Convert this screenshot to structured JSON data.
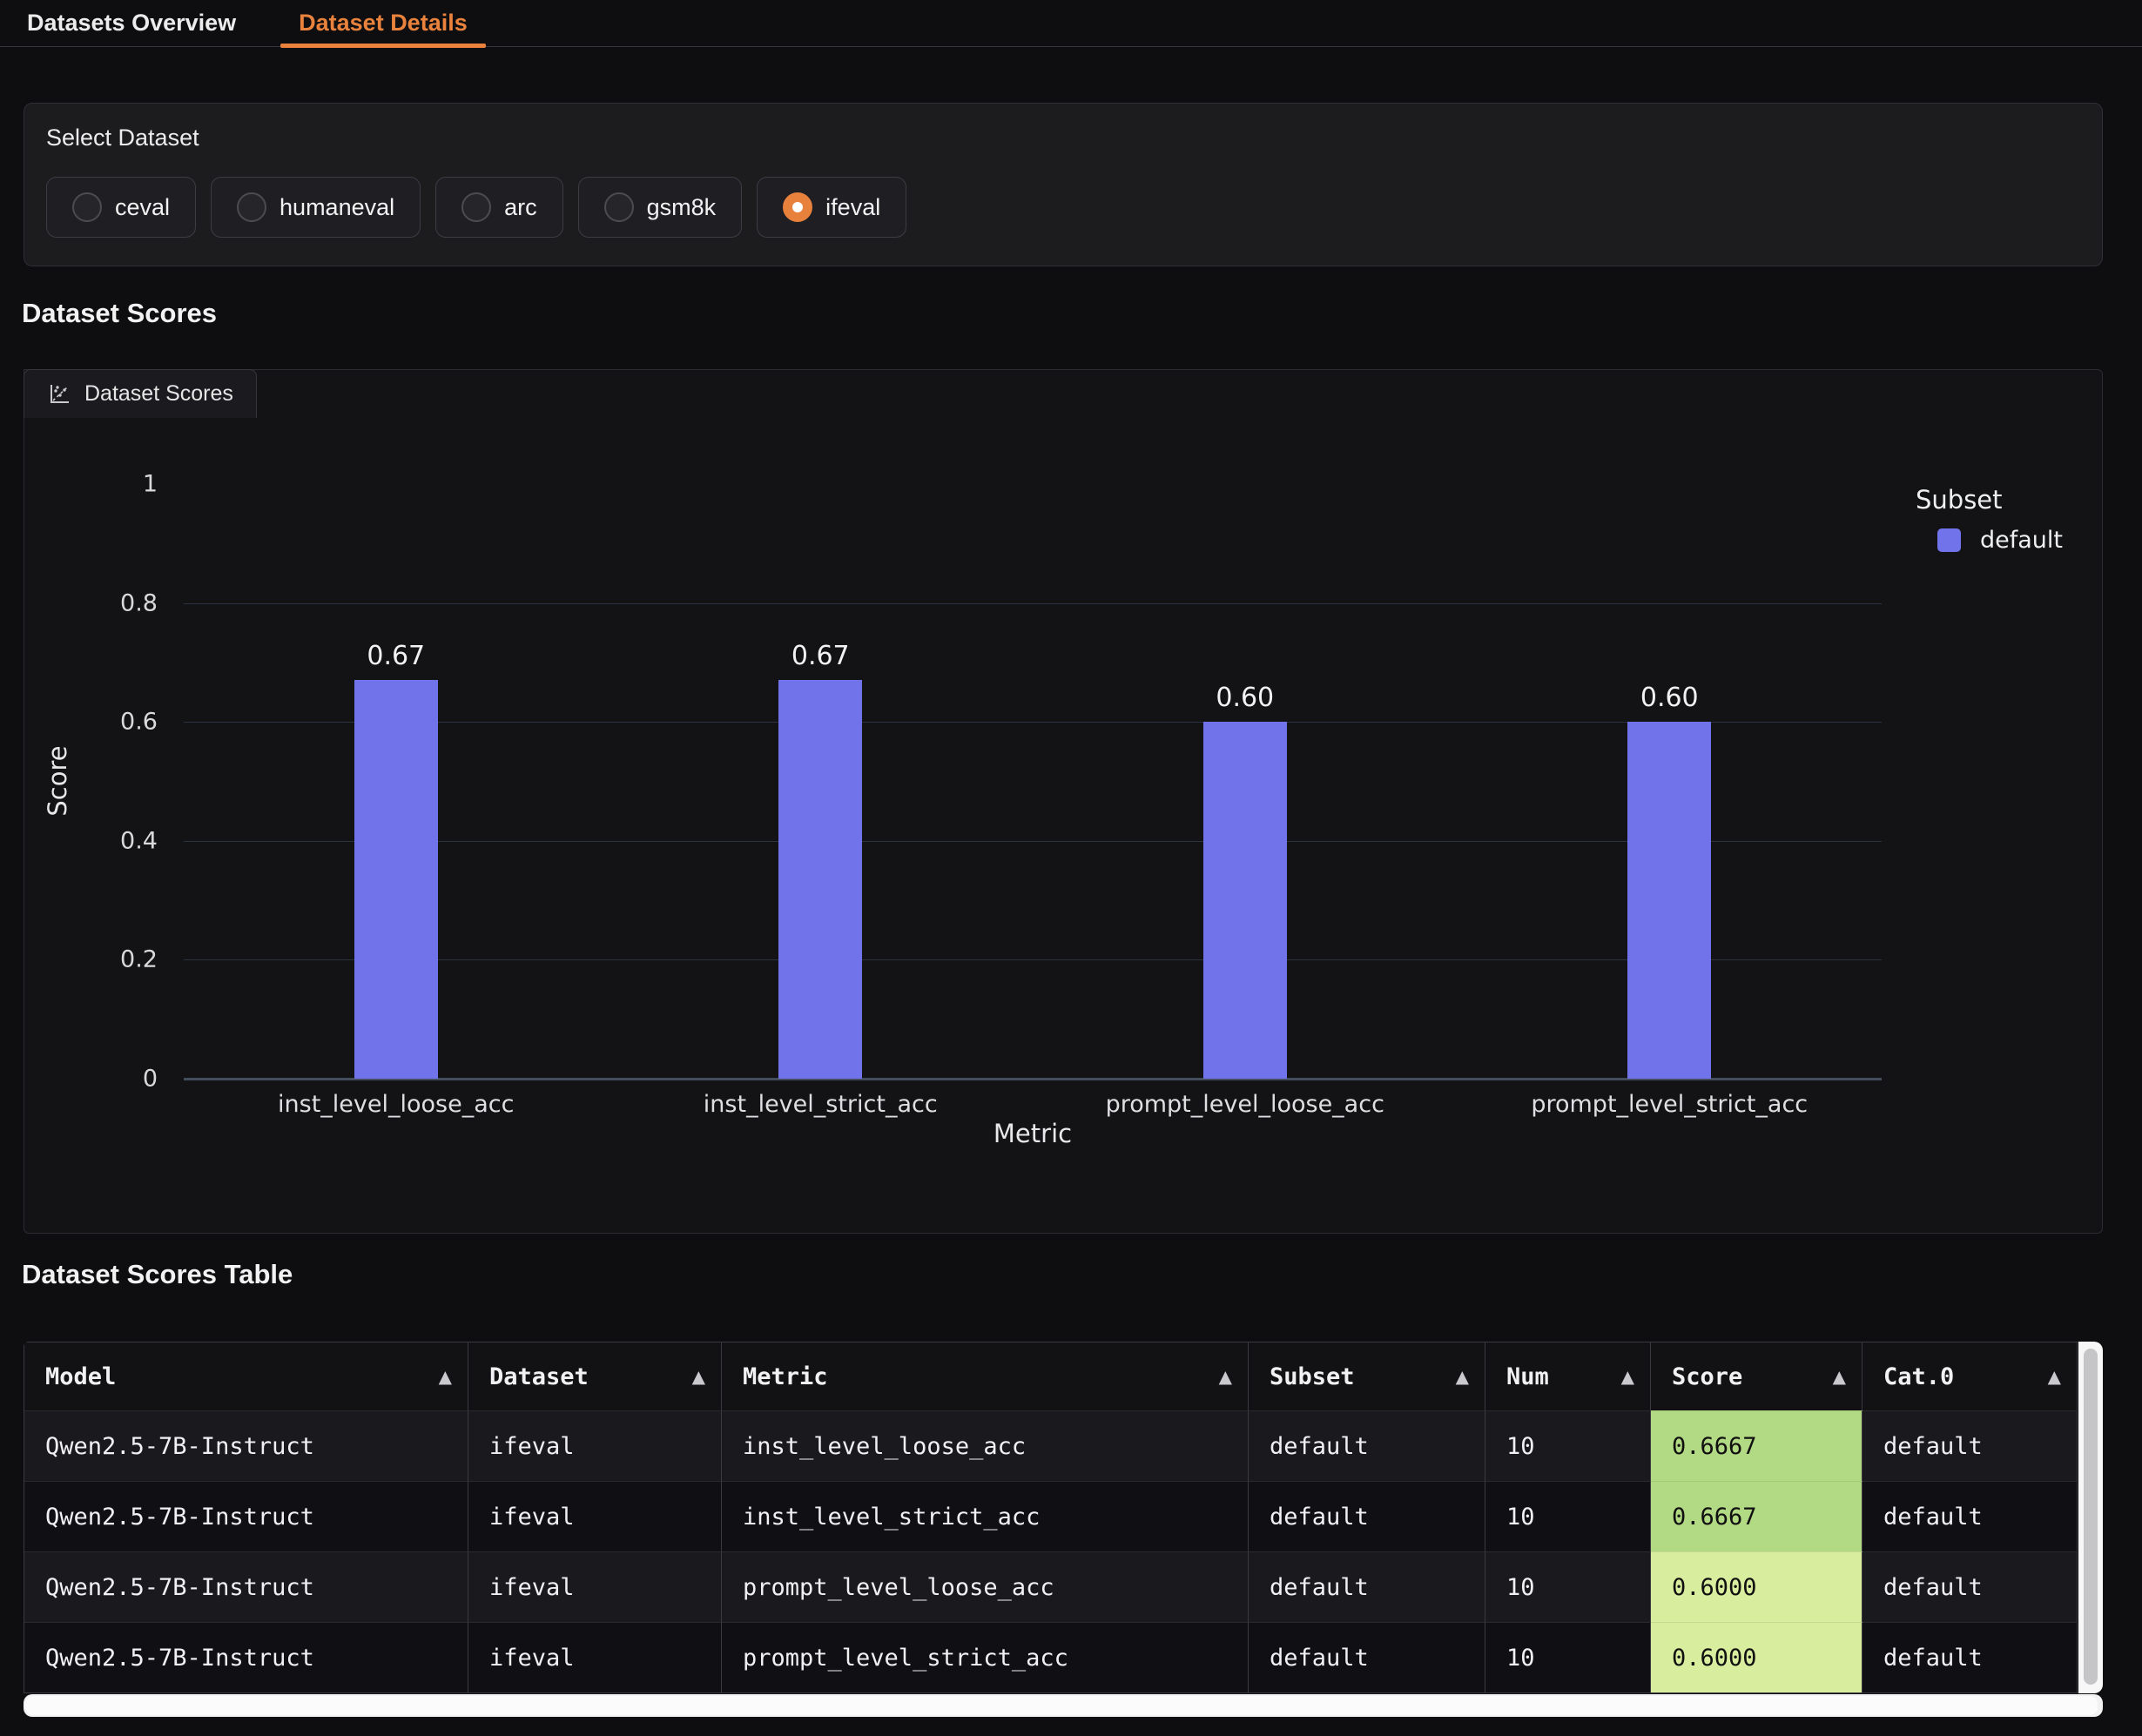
{
  "tabs": {
    "items": [
      {
        "label": "Datasets Overview",
        "active": false
      },
      {
        "label": "Dataset Details",
        "active": true
      }
    ]
  },
  "select_dataset": {
    "label": "Select Dataset",
    "options": [
      {
        "label": "ceval",
        "selected": false
      },
      {
        "label": "humaneval",
        "selected": false
      },
      {
        "label": "arc",
        "selected": false
      },
      {
        "label": "gsm8k",
        "selected": false
      },
      {
        "label": "ifeval",
        "selected": true
      }
    ]
  },
  "sections": {
    "scores_heading": "Dataset Scores",
    "table_heading": "Dataset Scores Table"
  },
  "chart_panel": {
    "tab_label": "Dataset Scores",
    "icon": "scatter-chart-icon"
  },
  "chart_data": {
    "type": "bar",
    "title": "",
    "categories": [
      "inst_level_loose_acc",
      "inst_level_strict_acc",
      "prompt_level_loose_acc",
      "prompt_level_strict_acc"
    ],
    "series": [
      {
        "name": "default",
        "values": [
          0.67,
          0.67,
          0.6,
          0.6
        ],
        "labels": [
          "0.67",
          "0.67",
          "0.60",
          "0.60"
        ],
        "color": "#7173ea"
      }
    ],
    "xlabel": "Metric",
    "ylabel": "Score",
    "ylim": [
      0,
      1
    ],
    "yticks": [
      0,
      0.2,
      0.4,
      0.6,
      0.8,
      1
    ],
    "ytick_labels": [
      "0",
      "0.2",
      "0.4",
      "0.6",
      "0.8",
      "1"
    ],
    "grid": true,
    "legend": {
      "title": "Subset",
      "position": "right",
      "entries": [
        {
          "label": "default",
          "color": "#7173ea"
        }
      ]
    }
  },
  "table": {
    "columns": [
      "Model",
      "Dataset",
      "Metric",
      "Subset",
      "Num",
      "Score",
      "Cat.0"
    ],
    "sort_icon": "▲",
    "rows": [
      {
        "cells": [
          "Qwen2.5-7B-Instruct",
          "ifeval",
          "inst_level_loose_acc",
          "default",
          "10",
          "0.6667",
          "default"
        ],
        "score_bg": "#b2d983"
      },
      {
        "cells": [
          "Qwen2.5-7B-Instruct",
          "ifeval",
          "inst_level_strict_acc",
          "default",
          "10",
          "0.6667",
          "default"
        ],
        "score_bg": "#b2d983"
      },
      {
        "cells": [
          "Qwen2.5-7B-Instruct",
          "ifeval",
          "prompt_level_loose_acc",
          "default",
          "10",
          "0.6000",
          "default"
        ],
        "score_bg": "#d9ed9f"
      },
      {
        "cells": [
          "Qwen2.5-7B-Instruct",
          "ifeval",
          "prompt_level_strict_acc",
          "default",
          "10",
          "0.6000",
          "default"
        ],
        "score_bg": "#d9ed9f"
      }
    ]
  },
  "colors": {
    "accent_orange": "#e8823c",
    "bar_blue": "#7173ea",
    "score_high_green": "#b2d983",
    "score_low_green": "#d9ed9f"
  }
}
